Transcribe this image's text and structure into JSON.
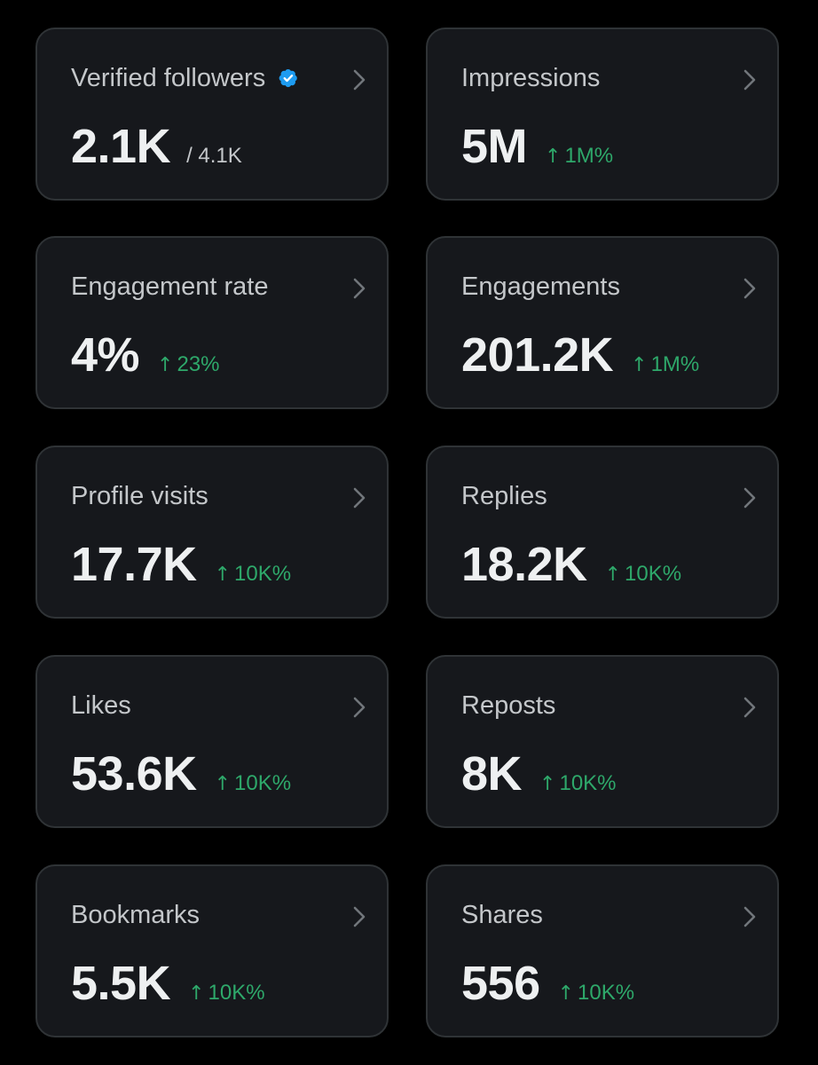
{
  "colors": {
    "background": "#000000",
    "card_background": "#16181c",
    "card_border": "#2f3336",
    "trend_up": "#2ea86a",
    "verified_blue": "#1d9bf0"
  },
  "cards": [
    {
      "title": "Verified followers",
      "value": "2.1K",
      "denominator": "/ 4.1K",
      "verified_icon": "verified-badge-icon"
    },
    {
      "title": "Impressions",
      "value": "5M",
      "trend": "1M%"
    },
    {
      "title": "Engagement rate",
      "value": "4%",
      "trend": "23%"
    },
    {
      "title": "Engagements",
      "value": "201.2K",
      "trend": "1M%"
    },
    {
      "title": "Profile visits",
      "value": "17.7K",
      "trend": "10K%"
    },
    {
      "title": "Replies",
      "value": "18.2K",
      "trend": "10K%"
    },
    {
      "title": "Likes",
      "value": "53.6K",
      "trend": "10K%"
    },
    {
      "title": "Reposts",
      "value": "8K",
      "trend": "10K%"
    },
    {
      "title": "Bookmarks",
      "value": "5.5K",
      "trend": "10K%"
    },
    {
      "title": "Shares",
      "value": "556",
      "trend": "10K%"
    }
  ],
  "trend_arrow": "↑",
  "chevron_icon": "chevron-right-icon"
}
